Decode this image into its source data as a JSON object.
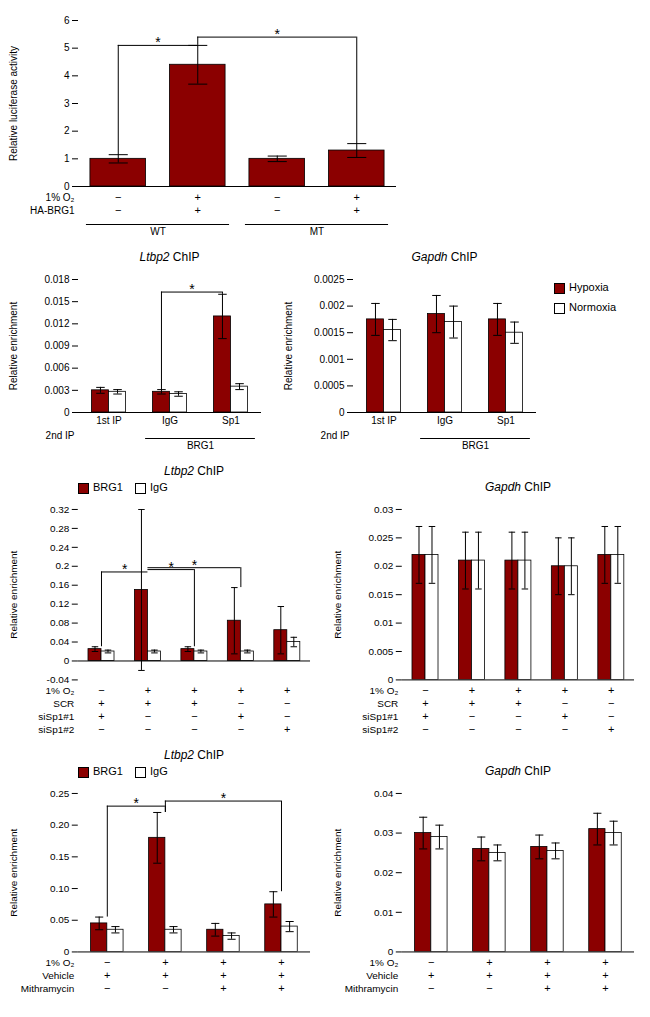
{
  "chart_data": [
    {
      "type": "bar",
      "categories": [
        null,
        null,
        null,
        null
      ],
      "values": [
        1.0,
        4.4,
        1.0,
        1.3
      ],
      "errors": [
        0.15,
        0.7,
        0.1,
        0.25
      ],
      "colors": [
        "#8B0000",
        "#8B0000",
        "#8B0000",
        "#8B0000"
      ],
      "ylabel": "Relative luciferase activity",
      "ylim": [
        0,
        6
      ],
      "yticks": [
        0,
        1,
        2,
        3,
        4,
        5,
        6
      ],
      "tick_labels": "y",
      "legend": false,
      "condition_rows": [
        {
          "label": "1% O₂",
          "values": [
            "−",
            "+",
            "−",
            "+"
          ]
        },
        {
          "label": "HA-BRG1",
          "values": [
            "−",
            "+",
            "−",
            "+"
          ]
        }
      ],
      "category_groups": [
        {
          "label": "WT",
          "members": [
            0,
            1
          ]
        },
        {
          "label": "MT",
          "members": [
            2,
            3
          ]
        }
      ],
      "annotations": [
        {
          "text": "*",
          "from": 0,
          "to": 1,
          "y": 5.1
        },
        {
          "text": "*",
          "from": 1,
          "to": 3,
          "y": 5.4
        }
      ]
    },
    {
      "type": "bar",
      "title": "Ltbp2 ChIP",
      "categories": [
        "1st IP",
        "IgG",
        "Sp1"
      ],
      "series": [
        {
          "name": "Hypoxia",
          "color": "#8B0000",
          "values": [
            0.003,
            0.0028,
            0.013
          ],
          "errors": [
            0.0004,
            0.0003,
            0.003
          ]
        },
        {
          "name": "Normoxia",
          "color": "#FFFFFF",
          "values": [
            0.0028,
            0.0025,
            0.0035
          ],
          "errors": [
            0.0003,
            0.0003,
            0.0004
          ]
        }
      ],
      "ylabel": "Relative enrichment",
      "ylim": [
        0,
        0.018
      ],
      "yticks": [
        0,
        0.003,
        0.006,
        0.009,
        0.012,
        0.015,
        0.018
      ],
      "legend": false,
      "category_group_label": "2nd IP",
      "category_groups": [
        {
          "label": "BRG1",
          "members": [
            1,
            2
          ]
        }
      ],
      "annotations": [
        {
          "text": "*",
          "series": "Hypoxia",
          "from": 1,
          "to": 2,
          "y": 0.0163
        }
      ]
    },
    {
      "type": "bar",
      "title": "Gapdh ChIP",
      "categories": [
        "1st IP",
        "IgG",
        "Sp1"
      ],
      "series": [
        {
          "name": "Hypoxia",
          "color": "#8B0000",
          "values": [
            0.00175,
            0.00185,
            0.00175
          ],
          "errors": [
            0.0003,
            0.00035,
            0.0003
          ]
        },
        {
          "name": "Normoxia",
          "color": "#FFFFFF",
          "values": [
            0.00155,
            0.0017,
            0.0015
          ],
          "errors": [
            0.0002,
            0.0003,
            0.0002
          ]
        }
      ],
      "ylabel": "Relative enrichment",
      "ylim": [
        0,
        0.0025
      ],
      "yticks": [
        0,
        0.0005,
        0.001,
        0.0015,
        0.002,
        0.0025
      ],
      "legend": "right",
      "category_group_label": "2nd IP",
      "category_groups": [
        {
          "label": "BRG1",
          "members": [
            1,
            2
          ]
        }
      ]
    },
    {
      "type": "bar",
      "title": "Ltbp2 ChIP",
      "categories": [
        null,
        null,
        null,
        null,
        null
      ],
      "series": [
        {
          "name": "BRG1",
          "color": "#8B0000",
          "values": [
            0.025,
            0.15,
            0.025,
            0.085,
            0.065
          ],
          "errors": [
            0.005,
            0.17,
            0.005,
            0.07,
            0.05
          ]
        },
        {
          "name": "IgG",
          "color": "#FFFFFF",
          "values": [
            0.02,
            0.02,
            0.02,
            0.02,
            0.04
          ],
          "errors": [
            0.003,
            0.003,
            0.003,
            0.003,
            0.01
          ]
        }
      ],
      "ylabel": "Relative enrichment",
      "ylim": [
        -0.04,
        0.32
      ],
      "yticks": [
        -0.04,
        0,
        0.04,
        0.08,
        0.12,
        0.16,
        0.2,
        0.24,
        0.28,
        0.32
      ],
      "tick_labels": "y",
      "legend": "top",
      "condition_rows": [
        {
          "label": "1% O₂",
          "values": [
            "−",
            "+",
            "+",
            "+",
            "+"
          ]
        },
        {
          "label": "SCR",
          "values": [
            "+",
            "+",
            "+",
            "−",
            "−"
          ]
        },
        {
          "label": "siSp1#1",
          "values": [
            "+",
            "−",
            "−",
            "+",
            "−"
          ]
        },
        {
          "label": "siSp1#2",
          "values": [
            "−",
            "−",
            "−",
            "−",
            "+"
          ]
        }
      ],
      "annotations": [
        {
          "text": "*",
          "from": 0,
          "to": 1,
          "y": 0.188
        },
        {
          "text": "*",
          "from": 1,
          "to": 2,
          "y": 0.193
        },
        {
          "text": "*",
          "from": 1,
          "to": 3,
          "y": 0.197
        }
      ]
    },
    {
      "type": "bar",
      "title": "Gapdh ChIP",
      "categories": [
        null,
        null,
        null,
        null,
        null
      ],
      "series": [
        {
          "name": "BRG1",
          "color": "#8B0000",
          "values": [
            0.022,
            0.021,
            0.021,
            0.02,
            0.022
          ],
          "errors": [
            0.005,
            0.005,
            0.005,
            0.005,
            0.005
          ]
        },
        {
          "name": "IgG",
          "color": "#FFFFFF",
          "values": [
            0.022,
            0.021,
            0.021,
            0.02,
            0.022
          ],
          "errors": [
            0.005,
            0.005,
            0.005,
            0.005,
            0.005
          ]
        }
      ],
      "ylabel": "Relative enrichment",
      "ylim": [
        0,
        0.03
      ],
      "yticks": [
        0,
        0.005,
        0.01,
        0.015,
        0.02,
        0.025,
        0.03
      ],
      "tick_labels": "y",
      "legend": false,
      "condition_rows": [
        {
          "label": "1% O₂",
          "values": [
            "−",
            "+",
            "+",
            "+",
            "+"
          ]
        },
        {
          "label": "SCR",
          "values": [
            "+",
            "+",
            "+",
            "−",
            "−"
          ]
        },
        {
          "label": "siSp1#1",
          "values": [
            "+",
            "−",
            "−",
            "+",
            "−"
          ]
        },
        {
          "label": "siSp1#2",
          "values": [
            "−",
            "−",
            "−",
            "−",
            "+"
          ]
        }
      ]
    },
    {
      "type": "bar",
      "title": "Ltbp2 ChIP",
      "categories": [
        null,
        null,
        null,
        null
      ],
      "series": [
        {
          "name": "BRG1",
          "color": "#8B0000",
          "values": [
            0.045,
            0.18,
            0.035,
            0.075
          ],
          "errors": [
            0.01,
            0.04,
            0.01,
            0.02
          ]
        },
        {
          "name": "IgG",
          "color": "#FFFFFF",
          "values": [
            0.035,
            0.035,
            0.025,
            0.04
          ],
          "errors": [
            0.005,
            0.005,
            0.005,
            0.008
          ]
        }
      ],
      "ylabel": "Relative enrichment",
      "ylim": [
        0,
        0.25
      ],
      "yticks": [
        0,
        0.05,
        {
          "value": 0.1,
          "label": "0.10"
        },
        0.15,
        {
          "value": 0.2,
          "label": "0.20"
        },
        0.25
      ],
      "tick_labels": "y",
      "legend": "top",
      "condition_rows": [
        {
          "label": "1% O₂",
          "values": [
            "−",
            "+",
            "+",
            "+"
          ]
        },
        {
          "label": "Vehicle",
          "values": [
            "+",
            "+",
            "+",
            "+"
          ]
        },
        {
          "label": "Mithramycin",
          "values": [
            "−",
            "−",
            "+",
            "+"
          ]
        }
      ],
      "annotations": [
        {
          "text": "*",
          "from": 0,
          "to": 1,
          "y": 0.23
        },
        {
          "text": "*",
          "from": 1,
          "to": 3,
          "y": 0.238
        }
      ]
    },
    {
      "type": "bar",
      "title": "Gapdh ChIP",
      "categories": [
        null,
        null,
        null,
        null
      ],
      "series": [
        {
          "name": "BRG1",
          "color": "#8B0000",
          "values": [
            0.03,
            0.026,
            0.0265,
            0.031
          ],
          "errors": [
            0.004,
            0.003,
            0.003,
            0.004
          ]
        },
        {
          "name": "IgG",
          "color": "#FFFFFF",
          "values": [
            0.029,
            0.025,
            0.0255,
            0.03
          ],
          "errors": [
            0.003,
            0.002,
            0.002,
            0.003
          ]
        }
      ],
      "ylabel": "Relative enrichment",
      "ylim": [
        0,
        0.04
      ],
      "yticks": [
        0,
        0.01,
        0.02,
        0.03,
        0.04
      ],
      "tick_labels": "y",
      "legend": false,
      "condition_rows": [
        {
          "label": "1% O₂",
          "values": [
            "−",
            "+",
            "+",
            "+"
          ]
        },
        {
          "label": "Vehicle",
          "values": [
            "+",
            "+",
            "+",
            "+"
          ]
        },
        {
          "label": "Mithramycin",
          "values": [
            "−",
            "−",
            "+",
            "+"
          ]
        }
      ]
    }
  ]
}
